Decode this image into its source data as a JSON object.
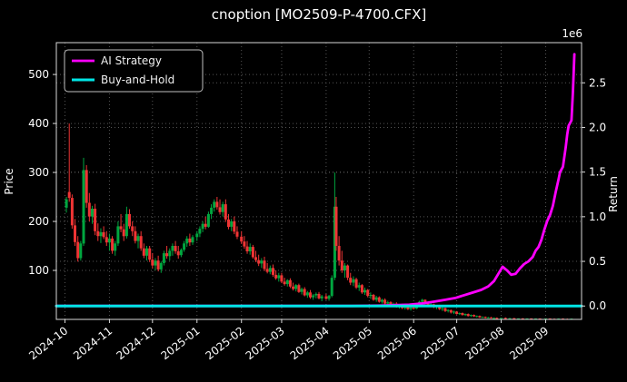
{
  "chart_data": {
    "type": "candlestick+line",
    "title": "cnoption [MO2509-P-4700.CFX]",
    "ylabel_left": "Price",
    "ylabel_right": "Return",
    "right_axis_multiplier": "1e6",
    "grid": true,
    "legend_position": "upper-left",
    "xlim": [
      -6,
      360
    ],
    "ylim_left": [
      0,
      565
    ],
    "ylim_right": [
      -0.15,
      2.95
    ],
    "left_ticks": [
      100,
      200,
      300,
      400,
      500
    ],
    "right_ticks": [
      0.0,
      0.5,
      1.0,
      1.5,
      2.0,
      2.5
    ],
    "x_ticks": {
      "t": [
        0,
        31,
        61,
        92,
        123,
        151,
        182,
        212,
        243,
        273,
        304,
        335
      ],
      "labels": [
        "2024-10",
        "2024-11",
        "2024-12",
        "2025-01",
        "2025-02",
        "2025-03",
        "2025-04",
        "2025-05",
        "2025-06",
        "2025-07",
        "2025-08",
        "2025-09"
      ]
    },
    "colors": {
      "up": "#00a63f",
      "down": "#ef3434",
      "grid": "#555555",
      "background": "#000000",
      "text": "#ffffff"
    },
    "series": [
      {
        "name": "AI Strategy",
        "color": "#ff00ff",
        "axis": "right",
        "width": 2.8,
        "points": [
          [
            -6,
            0
          ],
          [
            50,
            0
          ],
          [
            100,
            0
          ],
          [
            150,
            0
          ],
          [
            200,
            0
          ],
          [
            220,
            0.005
          ],
          [
            240,
            0.015
          ],
          [
            250,
            0.03
          ],
          [
            258,
            0.05
          ],
          [
            265,
            0.07
          ],
          [
            272,
            0.09
          ],
          [
            278,
            0.12
          ],
          [
            284,
            0.15
          ],
          [
            290,
            0.18
          ],
          [
            295,
            0.22
          ],
          [
            299,
            0.28
          ],
          [
            302,
            0.36
          ],
          [
            305,
            0.44
          ],
          [
            308,
            0.4
          ],
          [
            311,
            0.35
          ],
          [
            314,
            0.36
          ],
          [
            317,
            0.42
          ],
          [
            320,
            0.47
          ],
          [
            323,
            0.5
          ],
          [
            326,
            0.55
          ],
          [
            328,
            0.62
          ],
          [
            330,
            0.66
          ],
          [
            332,
            0.74
          ],
          [
            334,
            0.85
          ],
          [
            336,
            0.95
          ],
          [
            338,
            1.02
          ],
          [
            340,
            1.12
          ],
          [
            342,
            1.28
          ],
          [
            344,
            1.42
          ],
          [
            345,
            1.5
          ],
          [
            347,
            1.56
          ],
          [
            349,
            1.78
          ],
          [
            350,
            1.92
          ],
          [
            351,
            2.02
          ],
          [
            352,
            2.05
          ],
          [
            353,
            2.08
          ],
          [
            354,
            2.4
          ],
          [
            355,
            2.82
          ]
        ]
      },
      {
        "name": "Buy-and-Hold",
        "color": "#00e5e5",
        "axis": "right",
        "width": 3,
        "points": [
          [
            -6,
            0
          ],
          [
            360,
            0
          ]
        ]
      }
    ],
    "candles": [
      [
        1,
        228,
        250,
        218,
        245
      ],
      [
        3,
        260,
        400,
        240,
        248
      ],
      [
        5,
        248,
        255,
        185,
        192
      ],
      [
        7,
        192,
        205,
        150,
        158
      ],
      [
        9,
        158,
        170,
        118,
        125
      ],
      [
        11,
        125,
        160,
        120,
        155
      ],
      [
        13,
        155,
        330,
        150,
        305
      ],
      [
        15,
        305,
        315,
        228,
        238
      ],
      [
        17,
        238,
        258,
        200,
        210
      ],
      [
        19,
        210,
        232,
        195,
        226
      ],
      [
        21,
        226,
        236,
        172,
        180
      ],
      [
        23,
        180,
        196,
        160,
        170
      ],
      [
        25,
        170,
        186,
        156,
        178
      ],
      [
        27,
        178,
        190,
        164,
        168
      ],
      [
        29,
        168,
        180,
        150,
        157
      ],
      [
        31,
        157,
        175,
        140,
        165
      ],
      [
        33,
        165,
        170,
        134,
        140
      ],
      [
        35,
        140,
        160,
        130,
        155
      ],
      [
        37,
        155,
        200,
        150,
        190
      ],
      [
        39,
        190,
        215,
        178,
        184
      ],
      [
        41,
        184,
        195,
        160,
        170
      ],
      [
        43,
        170,
        230,
        165,
        215
      ],
      [
        45,
        215,
        225,
        185,
        190
      ],
      [
        47,
        190,
        200,
        170,
        180
      ],
      [
        49,
        180,
        190,
        155,
        160
      ],
      [
        51,
        160,
        175,
        145,
        170
      ],
      [
        53,
        170,
        180,
        140,
        145
      ],
      [
        55,
        145,
        155,
        125,
        130
      ],
      [
        57,
        130,
        150,
        120,
        145
      ],
      [
        59,
        145,
        150,
        117,
        122
      ],
      [
        61,
        122,
        135,
        104,
        110
      ],
      [
        63,
        110,
        125,
        100,
        120
      ],
      [
        65,
        120,
        130,
        98,
        102
      ],
      [
        67,
        102,
        118,
        95,
        115
      ],
      [
        69,
        115,
        140,
        110,
        135
      ],
      [
        71,
        135,
        150,
        124,
        129
      ],
      [
        73,
        129,
        145,
        120,
        140
      ],
      [
        75,
        140,
        155,
        130,
        150
      ],
      [
        77,
        150,
        160,
        134,
        139
      ],
      [
        79,
        139,
        150,
        124,
        131
      ],
      [
        81,
        131,
        145,
        127,
        142
      ],
      [
        83,
        142,
        160,
        138,
        155
      ],
      [
        85,
        155,
        170,
        148,
        165
      ],
      [
        87,
        165,
        175,
        150,
        157
      ],
      [
        89,
        157,
        172,
        152,
        168
      ],
      [
        92,
        168,
        180,
        160,
        175
      ],
      [
        94,
        175,
        190,
        168,
        185
      ],
      [
        96,
        185,
        200,
        178,
        195
      ],
      [
        98,
        195,
        210,
        184,
        189
      ],
      [
        100,
        189,
        220,
        187,
        215
      ],
      [
        102,
        215,
        235,
        205,
        228
      ],
      [
        104,
        228,
        245,
        220,
        240
      ],
      [
        106,
        240,
        250,
        224,
        229
      ],
      [
        108,
        229,
        245,
        214,
        219
      ],
      [
        110,
        219,
        240,
        210,
        235
      ],
      [
        112,
        235,
        245,
        199,
        204
      ],
      [
        114,
        204,
        215,
        184,
        189
      ],
      [
        116,
        189,
        205,
        180,
        200
      ],
      [
        118,
        200,
        210,
        174,
        179
      ],
      [
        120,
        179,
        190,
        164,
        169
      ],
      [
        123,
        169,
        180,
        154,
        159
      ],
      [
        125,
        159,
        170,
        144,
        149
      ],
      [
        127,
        149,
        160,
        134,
        139
      ],
      [
        129,
        139,
        155,
        132,
        148
      ],
      [
        131,
        148,
        152,
        124,
        127
      ],
      [
        133,
        127,
        140,
        117,
        121
      ],
      [
        135,
        121,
        132,
        109,
        114
      ],
      [
        137,
        114,
        125,
        105,
        120
      ],
      [
        139,
        120,
        128,
        99,
        103
      ],
      [
        141,
        103,
        115,
        94,
        97
      ],
      [
        143,
        97,
        110,
        92,
        105
      ],
      [
        145,
        105,
        112,
        87,
        91
      ],
      [
        147,
        91,
        100,
        81,
        84
      ],
      [
        149,
        84,
        95,
        77,
        90
      ],
      [
        151,
        90,
        95,
        74,
        77
      ],
      [
        153,
        77,
        85,
        69,
        72
      ],
      [
        155,
        72,
        82,
        67,
        80
      ],
      [
        157,
        80,
        84,
        64,
        67
      ],
      [
        159,
        67,
        75,
        59,
        62
      ],
      [
        161,
        62,
        72,
        57,
        70
      ],
      [
        163,
        70,
        73,
        54,
        56
      ],
      [
        165,
        56,
        65,
        51,
        62
      ],
      [
        167,
        62,
        66,
        47,
        49
      ],
      [
        169,
        49,
        58,
        44,
        55
      ],
      [
        171,
        55,
        60,
        42,
        45
      ],
      [
        173,
        45,
        52,
        40,
        49
      ],
      [
        175,
        49,
        55,
        43,
        52
      ],
      [
        177,
        52,
        56,
        41,
        43
      ],
      [
        179,
        43,
        50,
        37,
        47
      ],
      [
        182,
        47,
        52,
        40,
        42
      ],
      [
        184,
        42,
        50,
        38,
        48
      ],
      [
        186,
        48,
        90,
        45,
        85
      ],
      [
        188,
        85,
        300,
        80,
        230
      ],
      [
        189,
        230,
        250,
        140,
        150
      ],
      [
        191,
        150,
        170,
        110,
        120
      ],
      [
        193,
        120,
        140,
        95,
        100
      ],
      [
        195,
        100,
        115,
        85,
        110
      ],
      [
        197,
        110,
        112,
        80,
        85
      ],
      [
        199,
        85,
        95,
        70,
        75
      ],
      [
        201,
        75,
        88,
        68,
        82
      ],
      [
        203,
        82,
        85,
        62,
        65
      ],
      [
        205,
        65,
        75,
        58,
        70
      ],
      [
        207,
        70,
        72,
        52,
        55
      ],
      [
        209,
        55,
        65,
        50,
        60
      ],
      [
        211,
        60,
        62,
        45,
        48
      ],
      [
        213,
        48,
        55,
        42,
        50
      ],
      [
        215,
        50,
        52,
        38,
        40
      ],
      [
        217,
        40,
        48,
        36,
        45
      ],
      [
        219,
        45,
        47,
        34,
        36
      ],
      [
        221,
        36,
        42,
        32,
        40
      ],
      [
        223,
        40,
        43,
        30,
        32
      ],
      [
        225,
        32,
        38,
        28,
        35
      ],
      [
        227,
        35,
        37,
        26,
        28
      ],
      [
        229,
        28,
        34,
        25,
        32
      ],
      [
        231,
        32,
        35,
        24,
        26
      ],
      [
        233,
        26,
        31,
        22,
        29
      ],
      [
        235,
        29,
        32,
        21,
        23
      ],
      [
        237,
        23,
        28,
        20,
        26
      ],
      [
        239,
        26,
        29,
        19,
        21
      ],
      [
        241,
        21,
        26,
        18,
        24
      ],
      [
        243,
        24,
        28,
        20,
        22
      ],
      [
        245,
        22,
        30,
        21,
        28
      ],
      [
        247,
        28,
        38,
        26,
        36
      ],
      [
        249,
        36,
        42,
        33,
        40
      ],
      [
        251,
        40,
        41,
        30,
        32
      ],
      [
        253,
        32,
        36,
        27,
        29
      ],
      [
        255,
        29,
        33,
        25,
        31
      ],
      [
        257,
        31,
        32,
        23,
        25
      ],
      [
        259,
        25,
        29,
        21,
        27
      ],
      [
        261,
        27,
        28,
        19,
        21
      ],
      [
        263,
        21,
        25,
        17,
        23
      ],
      [
        265,
        23,
        24,
        15,
        17
      ],
      [
        267,
        17,
        21,
        14,
        19
      ],
      [
        269,
        19,
        20,
        12,
        14
      ],
      [
        271,
        14,
        18,
        11,
        16
      ],
      [
        273,
        16,
        17,
        10,
        11
      ],
      [
        275,
        11,
        14,
        9,
        13
      ],
      [
        277,
        13,
        14,
        8,
        9
      ],
      [
        279,
        9,
        12,
        7,
        11
      ],
      [
        281,
        11,
        12,
        6,
        7
      ],
      [
        283,
        7,
        10,
        5,
        9
      ],
      [
        285,
        9,
        10,
        5,
        6
      ],
      [
        287,
        6,
        8,
        4,
        7
      ],
      [
        289,
        7,
        8,
        3,
        4
      ],
      [
        291,
        4,
        6,
        3,
        5
      ],
      [
        293,
        5,
        6,
        2,
        3
      ],
      [
        295,
        3,
        5,
        2,
        4
      ],
      [
        297,
        4,
        5,
        2,
        2.5
      ],
      [
        299,
        2.5,
        4,
        1,
        3
      ],
      [
        301,
        3,
        4,
        1,
        2
      ],
      [
        304,
        2,
        3,
        1,
        3
      ],
      [
        307,
        3,
        4,
        1,
        2
      ],
      [
        310,
        2,
        3,
        1,
        2.5
      ],
      [
        313,
        2.5,
        3,
        1,
        1.5
      ],
      [
        316,
        1.5,
        2,
        1,
        2
      ],
      [
        319,
        2,
        2.5,
        1,
        1.5
      ],
      [
        322,
        1.5,
        2,
        1,
        2
      ],
      [
        325,
        2,
        2,
        1,
        1.2
      ],
      [
        328,
        1.2,
        2,
        1,
        1.8
      ],
      [
        331,
        1.8,
        2,
        1,
        1.2
      ],
      [
        335,
        1.2,
        2,
        1,
        1.8
      ],
      [
        338,
        1.8,
        2,
        1,
        1.2
      ],
      [
        341,
        1.2,
        2,
        0.8,
        1
      ],
      [
        344,
        1,
        2,
        0.8,
        1.6
      ],
      [
        347,
        1.6,
        2,
        0.8,
        1
      ],
      [
        350,
        1,
        1.8,
        0.8,
        0.9
      ],
      [
        353,
        0.9,
        1.8,
        0.8,
        1.4
      ]
    ]
  }
}
